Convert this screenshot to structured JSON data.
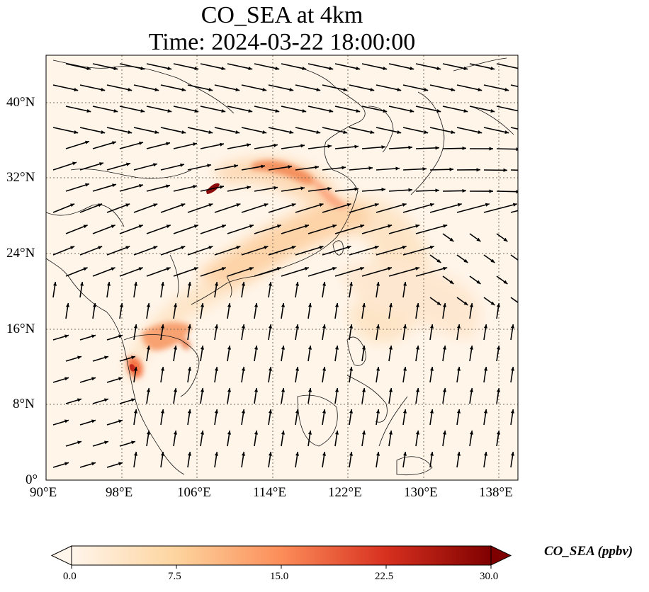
{
  "title_line1": "CO_SEA at 4km",
  "title_line2": "Time: 2024-03-22 18:00:00",
  "map": {
    "lon_range": [
      90,
      140
    ],
    "lat_range": [
      0,
      45
    ],
    "lon_ticks": [
      "90°E",
      "98°E",
      "106°E",
      "114°E",
      "122°E",
      "130°E",
      "138°E"
    ],
    "lat_ticks": [
      "0°",
      "8°N",
      "16°N",
      "24°N",
      "32°N",
      "40°N"
    ],
    "background_color": "#fff5e9",
    "gridlines": "dotted"
  },
  "colorbar": {
    "label": "CO_SEA (ppbv)",
    "min": 0.0,
    "max": 30.0,
    "ticks": [
      "0.0",
      "7.5",
      "15.0",
      "22.5",
      "30.0"
    ],
    "colormap": [
      "#fff5eb",
      "#fdd49e",
      "#fc8d59",
      "#d7301f",
      "#7f0000"
    ],
    "extend": "both"
  }
}
